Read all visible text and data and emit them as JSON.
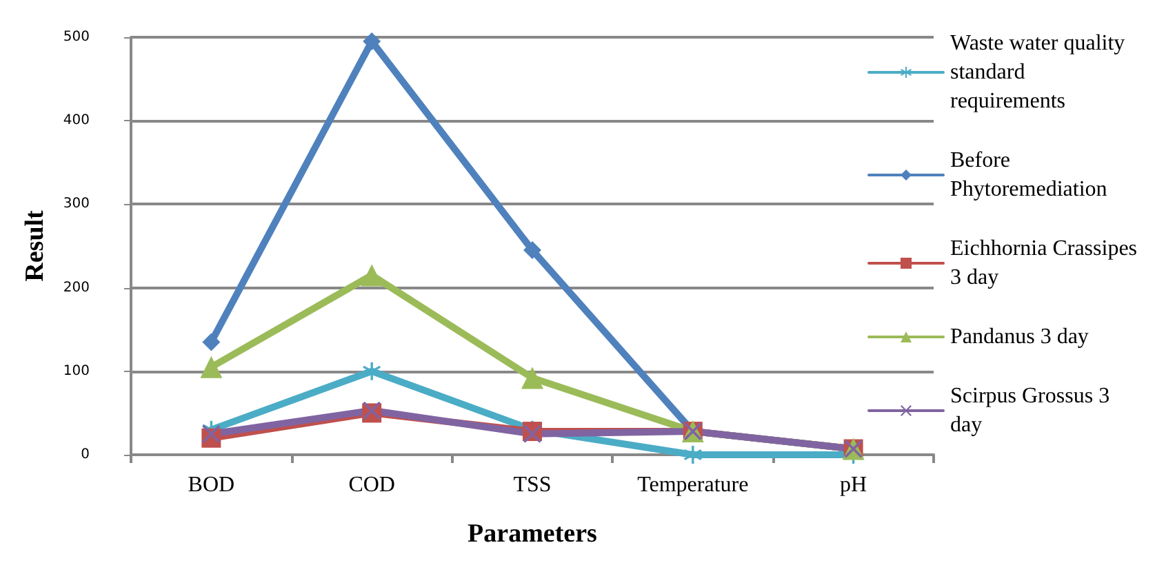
{
  "chart_data": {
    "type": "line",
    "xlabel": "Parameters",
    "ylabel": "Result",
    "categories": [
      "BOD",
      "COD",
      "TSS",
      "Temperature",
      "pH"
    ],
    "ylim": [
      0,
      500
    ],
    "yticks": [
      0,
      100,
      200,
      300,
      400,
      500
    ],
    "grid": "y",
    "legend": "right",
    "series": [
      {
        "name": "Waste water quality standard requirements",
        "color": "#4bacc6",
        "marker": "star",
        "values": [
          30,
          100,
          30,
          0,
          0
        ]
      },
      {
        "name": "Before Phytoremediation",
        "color": "#4f81bd",
        "marker": "diamond",
        "values": [
          135,
          495,
          245,
          28,
          7
        ]
      },
      {
        "name": "Eichhornia Crassipes 3 day",
        "color": "#c0504d",
        "marker": "square",
        "values": [
          20,
          50,
          28,
          28,
          7
        ]
      },
      {
        "name": "Pandanus 3 day",
        "color": "#9bbb59",
        "marker": "triangle",
        "values": [
          105,
          215,
          92,
          28,
          7
        ]
      },
      {
        "name": "Scirpus Grossus 3 day",
        "color": "#8064a2",
        "marker": "cross",
        "values": [
          25,
          53,
          25,
          28,
          7
        ]
      }
    ]
  }
}
